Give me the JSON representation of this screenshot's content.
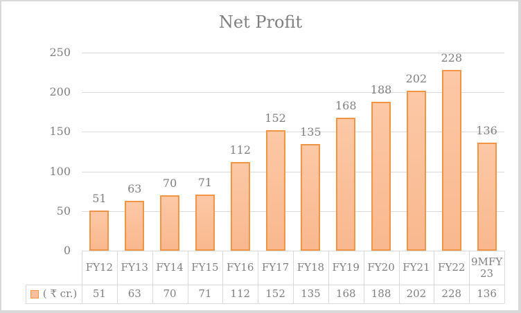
{
  "chart_data": {
    "type": "bar",
    "title": "Net Profit",
    "categories": [
      "FY12",
      "FY13",
      "FY14",
      "FY15",
      "FY16",
      "FY17",
      "FY18",
      "FY19",
      "FY20",
      "FY21",
      "FY22",
      "9MFY 23"
    ],
    "series": [
      {
        "name": "( ₹ cr.)",
        "values": [
          51,
          63,
          70,
          71,
          112,
          152,
          135,
          168,
          188,
          202,
          228,
          136
        ]
      }
    ],
    "xlabel": "",
    "ylabel": "",
    "ylim": [
      0,
      250
    ],
    "yticks": [
      0,
      50,
      100,
      150,
      200,
      250
    ],
    "grid": true,
    "legend_position": "data-table",
    "data_table": true,
    "colors": {
      "bar_fill": "#fcc4a0",
      "bar_border": "#f09446",
      "text": "#7f7f7f",
      "grid": "#d9d9d9"
    }
  },
  "yticks_text": [
    "250",
    "200",
    "150",
    "100",
    "50",
    "0"
  ],
  "legend_label": "( ₹ cr.)"
}
